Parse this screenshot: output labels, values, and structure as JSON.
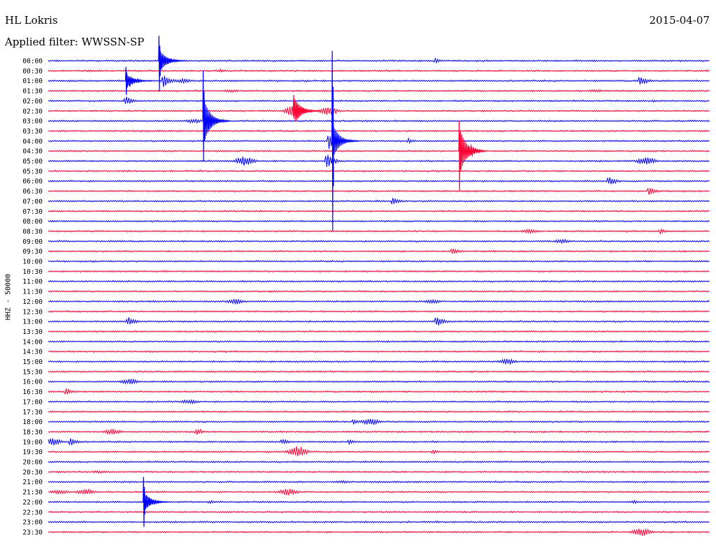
{
  "header": {
    "station": "HL Lokris",
    "date": "2015-04-07",
    "filter": "Applied filter: WWSSN-SP"
  },
  "chart_data": {
    "type": "line",
    "title": "HL Lokris",
    "date": "2015-04-07",
    "filter": "WWSSN-SP",
    "ylabel": "HHZ - 50000",
    "row_interval_minutes": 30,
    "row_labels": [
      "00:00",
      "00:30",
      "01:00",
      "01:30",
      "02:00",
      "02:30",
      "03:00",
      "03:30",
      "04:00",
      "04:30",
      "05:00",
      "05:30",
      "06:00",
      "06:30",
      "07:00",
      "07:30",
      "08:00",
      "08:30",
      "09:00",
      "09:30",
      "10:00",
      "10:30",
      "11:00",
      "11:30",
      "12:00",
      "12:30",
      "13:00",
      "13:30",
      "14:00",
      "14:30",
      "15:00",
      "15:30",
      "16:00",
      "16:30",
      "17:00",
      "17:30",
      "18:00",
      "18:30",
      "19:00",
      "19:30",
      "20:00",
      "20:30",
      "21:00",
      "21:30",
      "22:00",
      "22:30",
      "23:00",
      "23:30"
    ],
    "colors": [
      "#0000ff",
      "#ff0033"
    ],
    "color_pattern": "alternating rows, blue starting at 00:00",
    "events": [
      {
        "row": 0,
        "minute": 5.1,
        "amplitude": 14,
        "shape": "spike"
      },
      {
        "row": 0,
        "minute": 17.5,
        "amplitude": 4,
        "shape": "spike"
      },
      {
        "row": 1,
        "minute": 1.8,
        "amplitude": 2,
        "shape": "spike"
      },
      {
        "row": 1,
        "minute": 7.8,
        "amplitude": 3,
        "shape": "spike"
      },
      {
        "row": 2,
        "minute": 3.7,
        "amplitude": 9,
        "shape": "spike"
      },
      {
        "row": 2,
        "minute": 5.2,
        "amplitude": 12,
        "shape": "spike"
      },
      {
        "row": 2,
        "minute": 6.1,
        "amplitude": 3,
        "shape": "burst"
      },
      {
        "row": 2,
        "minute": 26.8,
        "amplitude": 9,
        "shape": "spike"
      },
      {
        "row": 3,
        "minute": 8.3,
        "amplitude": 2,
        "shape": "burst"
      },
      {
        "row": 3,
        "minute": 24.8,
        "amplitude": 2,
        "shape": "burst"
      },
      {
        "row": 4,
        "minute": 3.5,
        "amplitude": 8,
        "shape": "spike"
      },
      {
        "row": 4,
        "minute": 27.4,
        "amplitude": 2,
        "shape": "spike"
      },
      {
        "row": 5,
        "minute": 11.2,
        "amplitude": 10,
        "shape": "burst"
      },
      {
        "row": 5,
        "minute": 12.7,
        "amplitude": 6,
        "shape": "burst"
      },
      {
        "row": 6,
        "minute": 7.2,
        "amplitude": 14,
        "shape": "spike"
      },
      {
        "row": 6,
        "minute": 6.6,
        "amplitude": 3,
        "shape": "burst"
      },
      {
        "row": 8,
        "minute": 12.7,
        "amplitude": 14,
        "shape": "spike"
      },
      {
        "row": 8,
        "minute": 16.3,
        "amplitude": 4,
        "shape": "spike"
      },
      {
        "row": 9,
        "minute": 19.1,
        "amplitude": 12,
        "shape": "spike"
      },
      {
        "row": 10,
        "minute": 8.9,
        "amplitude": 7,
        "shape": "burst"
      },
      {
        "row": 10,
        "minute": 12.6,
        "amplitude": 14,
        "shape": "spike"
      },
      {
        "row": 10,
        "minute": 27.1,
        "amplitude": 6,
        "shape": "burst"
      },
      {
        "row": 12,
        "minute": 25.4,
        "amplitude": 8,
        "shape": "spike"
      },
      {
        "row": 13,
        "minute": 27.2,
        "amplitude": 7,
        "shape": "spike"
      },
      {
        "row": 14,
        "minute": 15.6,
        "amplitude": 6,
        "shape": "spike"
      },
      {
        "row": 17,
        "minute": 21.8,
        "amplitude": 3,
        "shape": "burst"
      },
      {
        "row": 17,
        "minute": 27.7,
        "amplitude": 4,
        "shape": "spike"
      },
      {
        "row": 18,
        "minute": 23.3,
        "amplitude": 3,
        "shape": "burst"
      },
      {
        "row": 19,
        "minute": 18.3,
        "amplitude": 6,
        "shape": "spike"
      },
      {
        "row": 24,
        "minute": 8.5,
        "amplitude": 4,
        "shape": "burst"
      },
      {
        "row": 24,
        "minute": 17.4,
        "amplitude": 3,
        "shape": "burst"
      },
      {
        "row": 26,
        "minute": 3.6,
        "amplitude": 8,
        "shape": "spike"
      },
      {
        "row": 26,
        "minute": 17.6,
        "amplitude": 9,
        "shape": "spike"
      },
      {
        "row": 30,
        "minute": 20.8,
        "amplitude": 4,
        "shape": "burst"
      },
      {
        "row": 32,
        "minute": 3.7,
        "amplitude": 4,
        "shape": "burst"
      },
      {
        "row": 33,
        "minute": 0.8,
        "amplitude": 6,
        "shape": "spike"
      },
      {
        "row": 34,
        "minute": 6.4,
        "amplitude": 3,
        "shape": "burst"
      },
      {
        "row": 36,
        "minute": 13.8,
        "amplitude": 5,
        "shape": "spike"
      },
      {
        "row": 36,
        "minute": 14.6,
        "amplitude": 5,
        "shape": "burst"
      },
      {
        "row": 37,
        "minute": 2.9,
        "amplitude": 4,
        "shape": "burst"
      },
      {
        "row": 37,
        "minute": 6.7,
        "amplitude": 6,
        "shape": "spike"
      },
      {
        "row": 38,
        "minute": 0.2,
        "amplitude": 5,
        "shape": "burst"
      },
      {
        "row": 38,
        "minute": 1.0,
        "amplitude": 7,
        "shape": "spike"
      },
      {
        "row": 38,
        "minute": 10.6,
        "amplitude": 5,
        "shape": "spike"
      },
      {
        "row": 38,
        "minute": 13.6,
        "amplitude": 4,
        "shape": "spike"
      },
      {
        "row": 39,
        "minute": 11.3,
        "amplitude": 8,
        "shape": "burst"
      },
      {
        "row": 39,
        "minute": 17.4,
        "amplitude": 4,
        "shape": "spike"
      },
      {
        "row": 41,
        "minute": 2.3,
        "amplitude": 2,
        "shape": "burst"
      },
      {
        "row": 42,
        "minute": 13.3,
        "amplitude": 2,
        "shape": "burst"
      },
      {
        "row": 43,
        "minute": 0.5,
        "amplitude": 3,
        "shape": "burst"
      },
      {
        "row": 43,
        "minute": 1.7,
        "amplitude": 4,
        "shape": "burst"
      },
      {
        "row": 43,
        "minute": 10.9,
        "amplitude": 5,
        "shape": "burst"
      },
      {
        "row": 44,
        "minute": 4.4,
        "amplitude": 14,
        "shape": "spike"
      },
      {
        "row": 44,
        "minute": 7.3,
        "amplitude": 3,
        "shape": "spike"
      },
      {
        "row": 44,
        "minute": 26.5,
        "amplitude": 3,
        "shape": "spike"
      },
      {
        "row": 47,
        "minute": 26.9,
        "amplitude": 6,
        "shape": "burst"
      }
    ],
    "big_events": [
      {
        "row": 8,
        "minute": 12.85,
        "up_rows": 9,
        "down_rows": 9,
        "coda_rows": 1.5
      },
      {
        "row": 6,
        "minute": 7.0,
        "up_rows": 5,
        "down_rows": 4,
        "coda_rows": 2
      },
      {
        "row": 9,
        "minute": 18.6,
        "up_rows": 3,
        "down_rows": 4,
        "coda_rows": 2
      },
      {
        "row": 0,
        "minute": 5.0,
        "up_rows": 2.5,
        "down_rows": 3,
        "coda_rows": 1
      },
      {
        "row": 44,
        "minute": 4.3,
        "up_rows": 2.5,
        "down_rows": 2.5,
        "coda_rows": 0.8
      },
      {
        "row": 5,
        "minute": 11.1,
        "up_rows": 1.6,
        "down_rows": 0.8,
        "coda_rows": 1.2
      },
      {
        "row": 2,
        "minute": 3.5,
        "up_rows": 1.4,
        "down_rows": 1.4,
        "coda_rows": 0.6
      }
    ]
  }
}
